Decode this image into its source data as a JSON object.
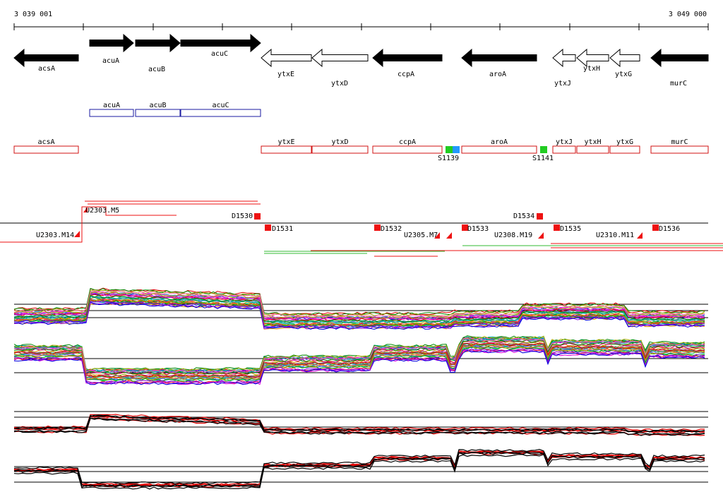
{
  "coords": {
    "start": "3 039 001",
    "end": "3 049 000"
  },
  "genes": [
    {
      "label": "acsA",
      "strand": "-",
      "filled": true
    },
    {
      "label": "acuA",
      "strand": "+",
      "filled": true
    },
    {
      "label": "acuB",
      "strand": "+",
      "filled": true
    },
    {
      "label": "acuC",
      "strand": "+",
      "filled": true
    },
    {
      "label": "ytxE",
      "strand": "-",
      "filled": false
    },
    {
      "label": "ytxD",
      "strand": "-",
      "filled": false
    },
    {
      "label": "ccpA",
      "strand": "-",
      "filled": true
    },
    {
      "label": "aroA",
      "strand": "-",
      "filled": true
    },
    {
      "label": "ytxJ",
      "strand": "-",
      "filled": false
    },
    {
      "label": "ytxH",
      "strand": "-",
      "filled": false
    },
    {
      "label": "ytxG",
      "strand": "-",
      "filled": false
    },
    {
      "label": "murC",
      "strand": "-",
      "filled": true
    }
  ],
  "operon_boxes": [
    {
      "label": "acuA"
    },
    {
      "label": "acuB"
    },
    {
      "label": "acuC"
    }
  ],
  "transcript_boxes": [
    {
      "label": "acsA"
    },
    {
      "label": "ytxE"
    },
    {
      "label": "ytxD"
    },
    {
      "label": "ccpA"
    },
    {
      "label": "aroA"
    },
    {
      "label": "ytxJ"
    },
    {
      "label": "ytxH"
    },
    {
      "label": "ytxG"
    },
    {
      "label": "murC"
    }
  ],
  "sites": [
    {
      "label": "S1139",
      "colors": [
        "#22cc22",
        "#2299ff"
      ]
    },
    {
      "label": "S1141",
      "colors": [
        "#22cc22"
      ]
    }
  ],
  "probes_up": [
    {
      "label": "D1530"
    },
    {
      "label": "D1534"
    }
  ],
  "probes_down": [
    {
      "label": "D1531"
    },
    {
      "label": "D1532"
    },
    {
      "label": "D1533"
    },
    {
      "label": "D1535"
    },
    {
      "label": "D1536"
    }
  ],
  "upstream_labels": [
    {
      "label": "U2303.M14"
    },
    {
      "label": "U2303.M5"
    },
    {
      "label": "U2305.M7"
    },
    {
      "label": "U2308.M19"
    },
    {
      "label": "U2310.M11"
    }
  ],
  "colors": {
    "gene_fill": "#000000",
    "operon_box": "#1a1aa0",
    "transcript_box": "#d01010",
    "probe": "#ee1111",
    "expr_red": "#e00000",
    "expr_black": "#000000"
  }
}
